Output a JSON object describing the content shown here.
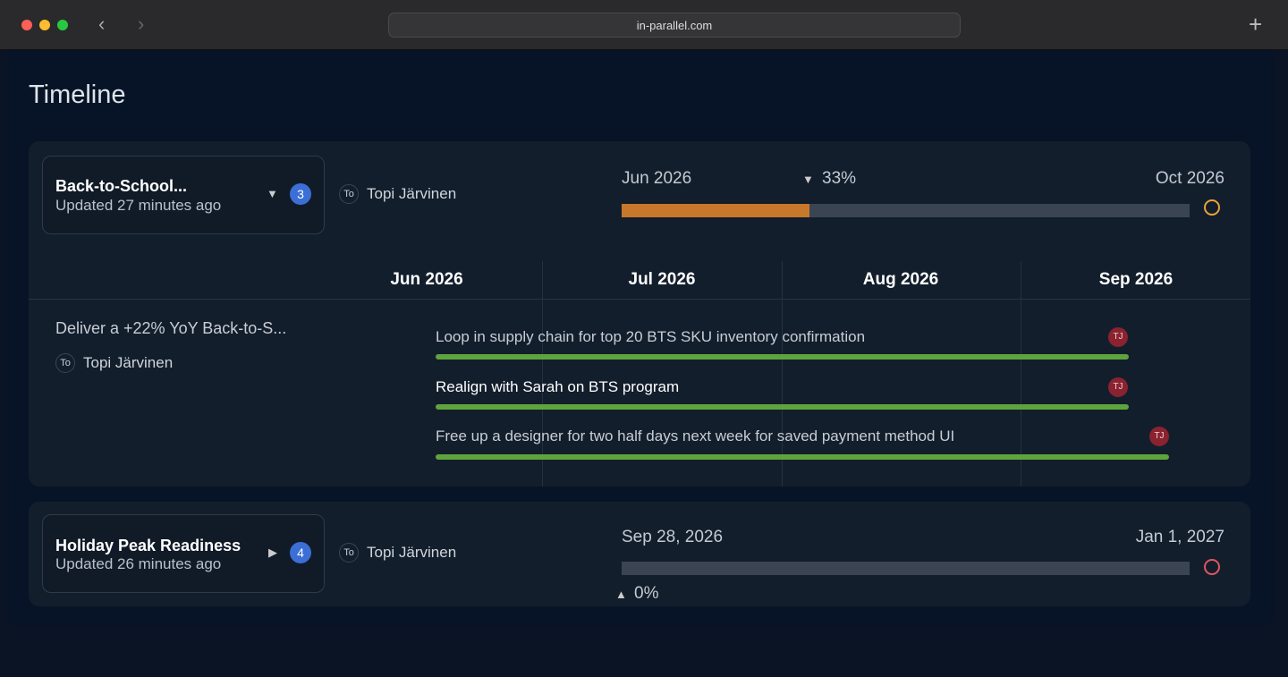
{
  "browser": {
    "url": "in-parallel.com"
  },
  "page": {
    "title": "Timeline"
  },
  "projects": [
    {
      "title": "Back-to-School...",
      "updated": "Updated 27 minutes ago",
      "count": "3",
      "owner_initials": "To",
      "owner": "Topi Järvinen",
      "start": "Jun 2026",
      "end": "Oct 2026",
      "progress": {
        "value": 33,
        "label": "33%"
      },
      "months": [
        "Jun 2026",
        "Jul 2026",
        "Aug 2026",
        "Sep 2026"
      ],
      "goal": {
        "title": "Deliver a +22% YoY Back-to-S...",
        "owner_initials": "To",
        "owner": "Topi Järvinen"
      },
      "tasks": [
        {
          "title": "Loop in supply chain for top 20 BTS SKU inventory confirmation",
          "assignee": "TJ"
        },
        {
          "title": "Realign with Sarah on BTS program",
          "assignee": "TJ"
        },
        {
          "title": "Free up a designer for two half days next week for saved payment method UI",
          "assignee": "TJ"
        }
      ]
    },
    {
      "title": "Holiday Peak Readiness",
      "updated": "Updated 26 minutes ago",
      "count": "4",
      "owner_initials": "To",
      "owner": "Topi Järvinen",
      "start": "Sep 28, 2026",
      "end": "Jan 1, 2027",
      "progress": {
        "value": 0,
        "label": "0%"
      }
    }
  ]
}
